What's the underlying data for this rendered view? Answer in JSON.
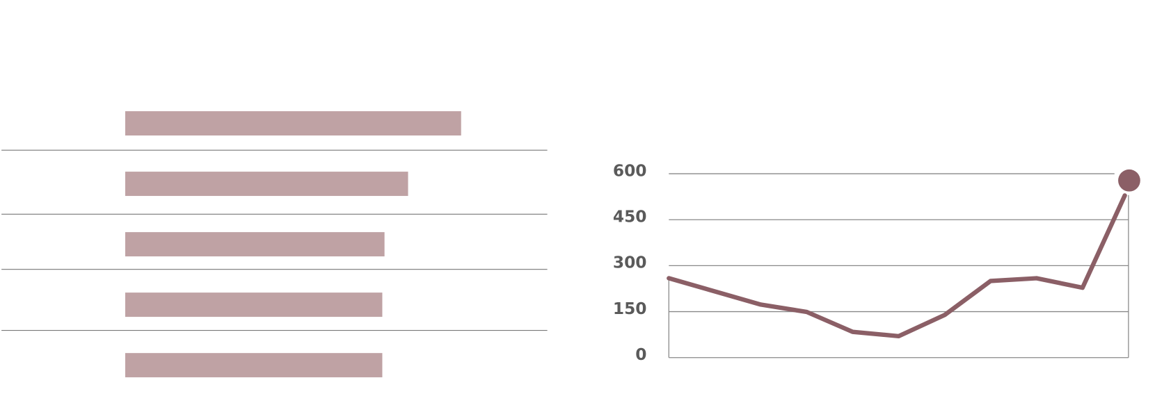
{
  "chart_data": [
    {
      "type": "hbar",
      "values": [
        456,
        384,
        352,
        349,
        349
      ],
      "xlim": [
        0,
        573
      ],
      "color": "#bfa2a4"
    },
    {
      "type": "line",
      "categories": [
        null,
        null,
        null,
        null,
        null,
        null,
        null,
        null,
        null,
        null,
        null
      ],
      "values": [
        259,
        216,
        173,
        149,
        84,
        70,
        139,
        250,
        259,
        228,
        578
      ],
      "color": "#8b5f66",
      "ylim": [
        0,
        600
      ],
      "yticks": [
        0,
        150,
        300,
        450,
        600
      ],
      "grid": true
    }
  ]
}
